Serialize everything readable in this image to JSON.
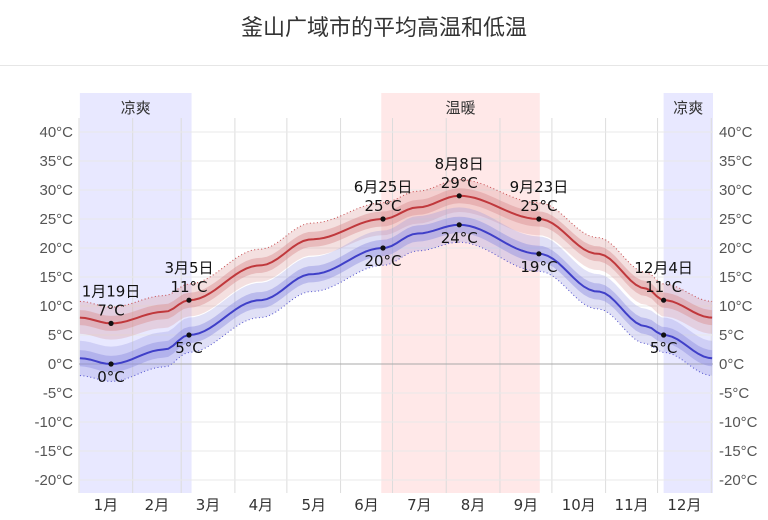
{
  "page": {
    "title": "釜山广域市的平均高温和低温"
  },
  "chart_data": {
    "type": "line",
    "title": "釜山广域市的平均高温和低温",
    "months": [
      "1月",
      "2月",
      "3月",
      "4月",
      "5月",
      "6月",
      "7月",
      "8月",
      "9月",
      "10月",
      "11月",
      "12月"
    ],
    "ylim": [
      -22,
      42
    ],
    "yticks": [
      -20,
      -15,
      -10,
      -5,
      0,
      5,
      10,
      15,
      20,
      25,
      30,
      35,
      40
    ],
    "ytick_labels": [
      "-20°C",
      "-15°C",
      "-10°C",
      "-5°C",
      "0°C",
      "5°C",
      "10°C",
      "15°C",
      "20°C",
      "25°C",
      "30°C",
      "35°C",
      "40°C"
    ],
    "seasons": [
      {
        "label": "凉爽",
        "start_day": 1,
        "end_day": 65,
        "color": "#e8e8ff"
      },
      {
        "label": "温暖",
        "start_day": 175,
        "end_day": 266,
        "color": "#ffe8e8"
      },
      {
        "label": "凉爽",
        "start_day": 338,
        "end_day": 366,
        "color": "#e8e8ff"
      }
    ],
    "series": [
      {
        "key": "high",
        "color": "#c0383c",
        "days": [
          1,
          19,
          50,
          64,
          105,
          135,
          176,
          196,
          220,
          266,
          300,
          328,
          338,
          366
        ],
        "values": [
          8.0,
          7.0,
          9.0,
          11.0,
          17.0,
          21.5,
          25.0,
          27.0,
          29.0,
          25.0,
          19.0,
          13.0,
          11.0,
          8.0
        ],
        "band_inner": 1.3,
        "band_outer": 2.8,
        "band_color": "#d98f91"
      },
      {
        "key": "low",
        "color": "#3f3fc8",
        "days": [
          1,
          19,
          50,
          64,
          105,
          135,
          176,
          196,
          220,
          266,
          300,
          328,
          338,
          366
        ],
        "values": [
          1.0,
          0.0,
          2.5,
          5.0,
          11.0,
          15.5,
          20.0,
          22.5,
          24.0,
          19.0,
          12.5,
          6.5,
          5.0,
          1.0
        ],
        "band_inner": 1.4,
        "band_outer": 3.0,
        "band_color": "#8e8ee0"
      }
    ],
    "annotations": [
      {
        "day": 19,
        "series": "high",
        "value": 7,
        "date": "1月19日",
        "text": "7°C",
        "pos": "above"
      },
      {
        "day": 19,
        "series": "low",
        "value": 0,
        "date": "",
        "text": "0°C",
        "pos": "below"
      },
      {
        "day": 64,
        "series": "high",
        "value": 11,
        "date": "3月5日",
        "text": "11°C",
        "pos": "above"
      },
      {
        "day": 64,
        "series": "low",
        "value": 5,
        "date": "",
        "text": "5°C",
        "pos": "below"
      },
      {
        "day": 176,
        "series": "high",
        "value": 25,
        "date": "6月25日",
        "text": "25°C",
        "pos": "above"
      },
      {
        "day": 176,
        "series": "low",
        "value": 20,
        "date": "",
        "text": "20°C",
        "pos": "below"
      },
      {
        "day": 220,
        "series": "high",
        "value": 29,
        "date": "8月8日",
        "text": "29°C",
        "pos": "above"
      },
      {
        "day": 220,
        "series": "low",
        "value": 24,
        "date": "",
        "text": "24°C",
        "pos": "below"
      },
      {
        "day": 266,
        "series": "high",
        "value": 25,
        "date": "9月23日",
        "text": "25°C",
        "pos": "above"
      },
      {
        "day": 266,
        "series": "low",
        "value": 19,
        "date": "",
        "text": "19°C",
        "pos": "below"
      },
      {
        "day": 338,
        "series": "high",
        "value": 11,
        "date": "12月4日",
        "text": "11°C",
        "pos": "above"
      },
      {
        "day": 338,
        "series": "low",
        "value": 5,
        "date": "",
        "text": "5°C",
        "pos": "below"
      }
    ],
    "grid": true,
    "zero_line": true
  }
}
